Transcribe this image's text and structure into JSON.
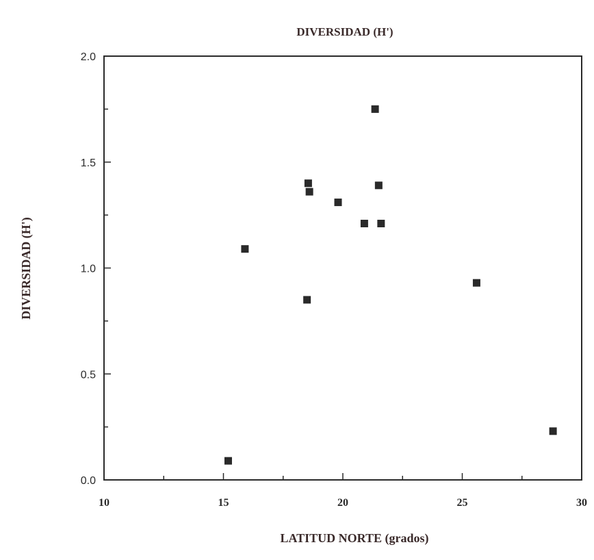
{
  "chart_data": {
    "type": "scatter",
    "title": "DIVERSIDAD (H')",
    "xlabel": "LATITUD NORTE (grados)",
    "ylabel": "DIVERSIDAD (H')",
    "xlim": [
      10,
      30
    ],
    "ylim": [
      0.0,
      2.0
    ],
    "x_ticks": [
      10,
      15,
      20,
      25,
      30
    ],
    "x_tick_labels": [
      "10",
      "15",
      "20",
      "25",
      "30"
    ],
    "y_ticks": [
      0.0,
      0.5,
      1.0,
      1.5,
      2.0
    ],
    "y_tick_labels": [
      "0.0",
      "0.5",
      "1.0",
      "1.5",
      "2.0"
    ],
    "grid": false,
    "marker": "square",
    "color": "#2a2a2a",
    "points": [
      {
        "x": 15.2,
        "y": 0.09
      },
      {
        "x": 15.9,
        "y": 1.09
      },
      {
        "x": 18.5,
        "y": 0.85
      },
      {
        "x": 18.55,
        "y": 1.4
      },
      {
        "x": 18.6,
        "y": 1.36
      },
      {
        "x": 19.8,
        "y": 1.31
      },
      {
        "x": 20.9,
        "y": 1.21
      },
      {
        "x": 21.35,
        "y": 1.75
      },
      {
        "x": 21.5,
        "y": 1.39
      },
      {
        "x": 21.6,
        "y": 1.21
      },
      {
        "x": 25.6,
        "y": 0.93
      },
      {
        "x": 28.8,
        "y": 0.23
      }
    ]
  }
}
